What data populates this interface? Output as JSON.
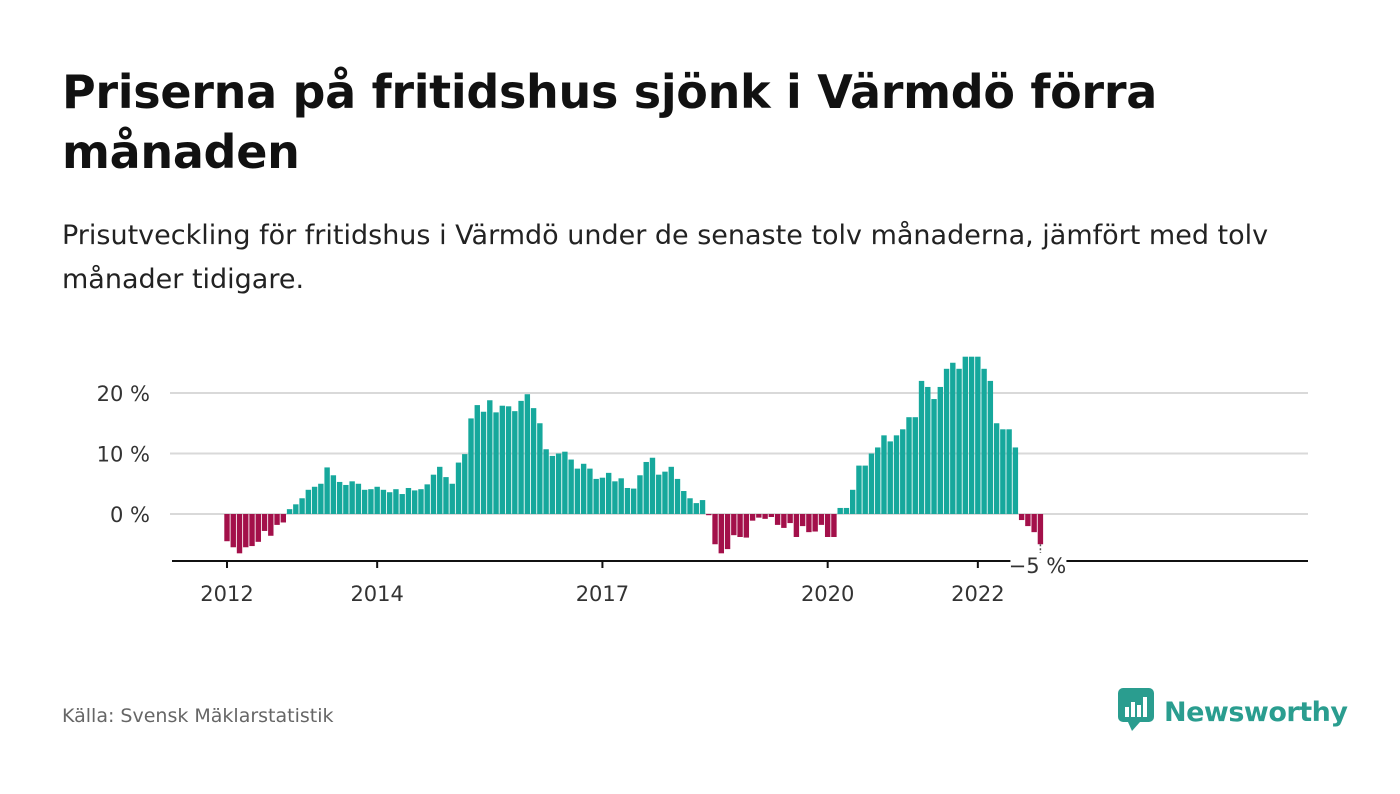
{
  "title": "Priserna på fritidshus sjönk i Värmdö förra månaden",
  "subtitle": "Prisutveckling för fritidshus i Värmdö under de senaste tolv månaderna, jämfört med tolv månader tidigare.",
  "source": "Källa: Svensk Mäklarstatistik",
  "brand": "Newsworthy",
  "colors": {
    "positive": "#16a89c",
    "negative": "#a3104a",
    "grid": "#d9d9d9",
    "axis": "#111111",
    "brand": "#2a9d8f"
  },
  "chart_data": {
    "type": "bar",
    "title": "Priserna på fritidshus sjönk i Värmdö förra månaden",
    "subtitle": "Prisutveckling för fritidshus i Värmdö under de senaste tolv månaderna, jämfört med tolv månader tidigare.",
    "xlabel": "",
    "ylabel": "",
    "x_start": "2012-01",
    "frequency": "monthly",
    "x_ticks": [
      "2012",
      "2014",
      "2017",
      "2020",
      "2022"
    ],
    "x_tick_months": [
      "2012-01",
      "2014-01",
      "2017-01",
      "2020-01",
      "2022-01"
    ],
    "y_ticks": [
      "20 %",
      "10 %",
      "0 %"
    ],
    "y_tick_values": [
      20,
      10,
      0
    ],
    "ylim": [
      -7.5,
      26
    ],
    "grid": true,
    "last_label": "−5 %",
    "values": [
      -4.5,
      -5.5,
      -6.5,
      -5.5,
      -5.3,
      -4.6,
      -2.8,
      -3.6,
      -1.8,
      -1.4,
      0.8,
      1.6,
      2.6,
      4.0,
      4.5,
      5.0,
      7.7,
      6.4,
      5.3,
      4.8,
      5.4,
      5.0,
      4.0,
      4.1,
      4.5,
      4.0,
      3.6,
      4.1,
      3.3,
      4.3,
      3.9,
      4.1,
      4.9,
      6.5,
      7.8,
      6.1,
      5.0,
      8.5,
      9.9,
      15.8,
      18.0,
      16.9,
      18.8,
      16.8,
      17.9,
      17.8,
      17.0,
      18.7,
      19.8,
      17.5,
      15.0,
      10.7,
      9.6,
      10.0,
      10.3,
      9.0,
      7.5,
      8.3,
      7.5,
      5.8,
      6.0,
      6.8,
      5.4,
      5.9,
      4.3,
      4.2,
      6.4,
      8.6,
      9.3,
      6.5,
      7.0,
      7.8,
      5.8,
      3.8,
      2.6,
      1.8,
      2.3,
      -0.2,
      -5.0,
      -6.5,
      -5.8,
      -3.5,
      -3.8,
      -3.9,
      -1.1,
      -0.6,
      -0.8,
      -0.5,
      -1.8,
      -2.3,
      -1.5,
      -3.8,
      -2.0,
      -3.0,
      -2.9,
      -1.8,
      -3.8,
      -3.8,
      1.0,
      1.0,
      4.0,
      8.0,
      8.0,
      10.0,
      11.0,
      13.0,
      12.0,
      13.0,
      14.0,
      16.0,
      16.0,
      22.0,
      21.0,
      19.0,
      21.0,
      24.0,
      25.0,
      24.0,
      26.0,
      26.0,
      26.0,
      24.0,
      22.0,
      15.0,
      14.0,
      14.0,
      11.0,
      -1.0,
      -2.0,
      -3.0,
      -5.0
    ]
  }
}
